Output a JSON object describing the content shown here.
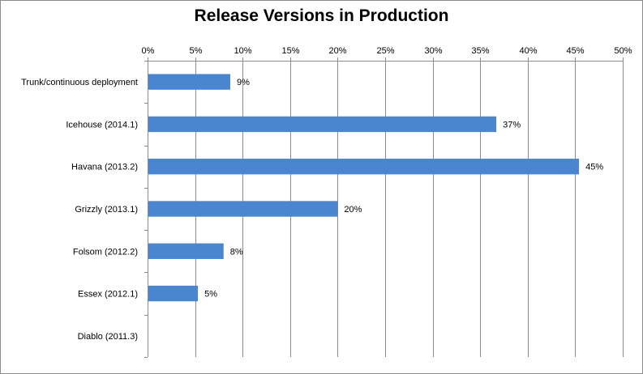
{
  "chart_data": {
    "type": "bar",
    "orientation": "horizontal",
    "title": "Release Versions in Production",
    "xlabel": "",
    "ylabel": "",
    "categories": [
      "Trunk/continuous deployment",
      "Icehouse (2014.1)",
      "Havana (2013.2)",
      "Grizzly (2013.1)",
      "Folsom (2012.2)",
      "Essex (2012.1)",
      "Diablo (2011.3)"
    ],
    "values": [
      8.7,
      36.7,
      45.4,
      20.0,
      8.0,
      5.3,
      0
    ],
    "data_labels": [
      "9%",
      "37%",
      "45%",
      "20%",
      "8%",
      "5%",
      ""
    ],
    "xlim": [
      0,
      50
    ],
    "x_ticks": [
      0,
      5,
      10,
      15,
      20,
      25,
      30,
      35,
      40,
      45,
      50
    ],
    "x_tick_labels": [
      "0%",
      "5%",
      "10%",
      "15%",
      "20%",
      "25%",
      "30%",
      "35%",
      "40%",
      "45%",
      "50%"
    ],
    "x_axis_position": "top",
    "grid": true,
    "legend": "none",
    "bar_color": "#4a86cf",
    "grid_color": "#8c8c8c"
  }
}
